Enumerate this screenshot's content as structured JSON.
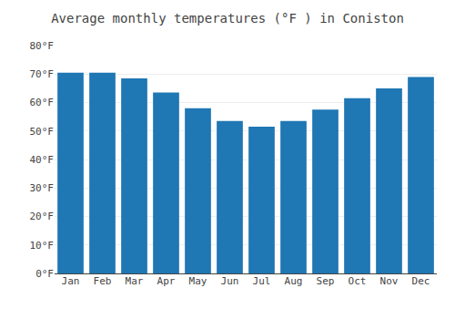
{
  "chart_data": {
    "type": "bar",
    "title": "Average monthly temperatures (°F ) in Coniston",
    "categories": [
      "Jan",
      "Feb",
      "Mar",
      "Apr",
      "May",
      "Jun",
      "Jul",
      "Aug",
      "Sep",
      "Oct",
      "Nov",
      "Dec"
    ],
    "values": [
      70.5,
      70.5,
      68.5,
      63.5,
      58.0,
      53.5,
      51.5,
      53.5,
      57.5,
      61.5,
      65.0,
      69.0
    ],
    "ylim": [
      0,
      80
    ],
    "yticks": [
      {
        "value": 0,
        "label": "0°F"
      },
      {
        "value": 10,
        "label": "10°F"
      },
      {
        "value": 20,
        "label": "20°F"
      },
      {
        "value": 30,
        "label": "30°F"
      },
      {
        "value": 40,
        "label": "40°F"
      },
      {
        "value": 50,
        "label": "50°F"
      },
      {
        "value": 60,
        "label": "60°F"
      },
      {
        "value": 70,
        "label": "70°F"
      },
      {
        "value": 80,
        "label": "80°F"
      }
    ],
    "grid": true
  }
}
